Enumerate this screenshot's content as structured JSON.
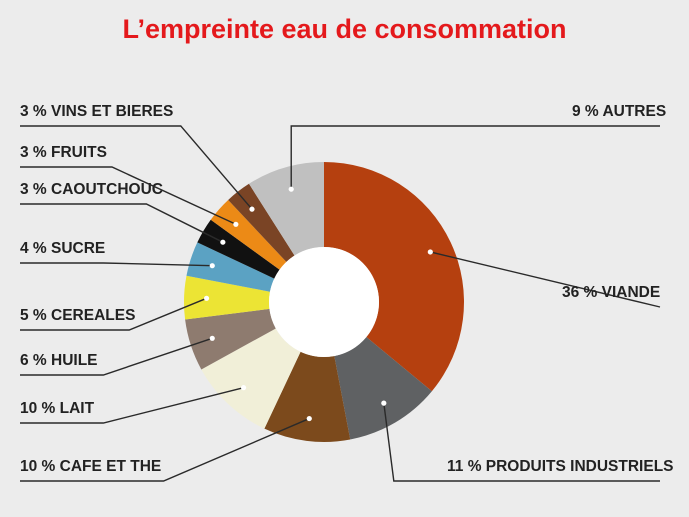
{
  "title": "L’empreinte eau de consommation",
  "chart_data": {
    "type": "pie",
    "donut": true,
    "title": "L’empreinte eau de consommation",
    "slices": [
      {
        "name": "VIANDE",
        "value": 36,
        "label": "36 % VIANDE",
        "color": "#b5400f"
      },
      {
        "name": "PRODUITS INDUSTRIELS",
        "value": 11,
        "label": "11 % PRODUITS INDUSTRIELS",
        "color": "#5f6163"
      },
      {
        "name": "CAFE ET THE",
        "value": 10,
        "label": "10 % CAFE ET THE",
        "color": "#7c4a1c"
      },
      {
        "name": "LAIT",
        "value": 10,
        "label": "10 % LAIT",
        "color": "#f1efd8"
      },
      {
        "name": "HUILE",
        "value": 6,
        "label": "6 % HUILE",
        "color": "#8e7b6f"
      },
      {
        "name": "CEREALES",
        "value": 5,
        "label": "5 % CEREALES",
        "color": "#ece434"
      },
      {
        "name": "SUCRE",
        "value": 4,
        "label": "4 % SUCRE",
        "color": "#5ba2c3"
      },
      {
        "name": "CAOUTCHOUC",
        "value": 3,
        "label": "3 % CAOUTCHOUC",
        "color": "#111111"
      },
      {
        "name": "FRUITS",
        "value": 3,
        "label": "3 % FRUITS",
        "color": "#ec8a16"
      },
      {
        "name": "VINS ET BIERES",
        "value": 3,
        "label": "3 % VINS ET BIERES",
        "color": "#7a4425"
      },
      {
        "name": "AUTRES",
        "value": 9,
        "label": "9 % AUTRES",
        "color": "#c0c0c0"
      }
    ]
  }
}
